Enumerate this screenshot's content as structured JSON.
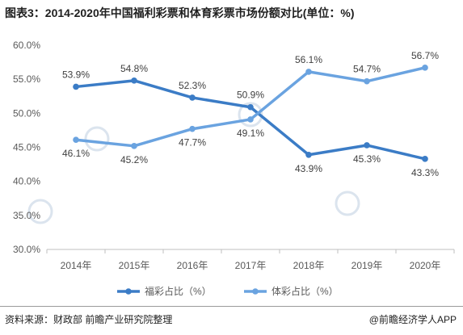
{
  "title": "图表3：2014-2020年中国福利彩票和体育彩票市场份额对比(单位：%)",
  "footer": {
    "source": "资料来源：财政部 前瞻产业研究院整理",
    "brand": "@前瞻经济学人APP"
  },
  "chart_data": {
    "type": "line",
    "title": "图表3：2014-2020年中国福利彩票和体育彩票市场份额对比(单位：%)",
    "categories": [
      "2014年",
      "2015年",
      "2016年",
      "2017年",
      "2018年",
      "2019年",
      "2020年"
    ],
    "ylim": [
      30,
      60
    ],
    "yticks": [
      "60.0%",
      "55.0%",
      "50.0%",
      "45.0%",
      "40.0%",
      "35.0%",
      "30.0%"
    ],
    "grid": false,
    "legend_position": "bottom",
    "series": [
      {
        "name": "福彩占比（%）",
        "color": "#3b7cc6",
        "values": [
          53.9,
          54.8,
          52.3,
          50.9,
          43.9,
          45.3,
          43.3
        ],
        "labels": [
          "53.9%",
          "54.8%",
          "52.3%",
          "50.9%",
          "43.9%",
          "45.3%",
          "43.3%"
        ]
      },
      {
        "name": "体彩占比（%）",
        "color": "#6aa3e0",
        "values": [
          46.1,
          45.2,
          47.7,
          49.1,
          56.1,
          54.7,
          56.7
        ],
        "labels": [
          "46.1%",
          "45.2%",
          "47.7%",
          "49.1%",
          "56.1%",
          "54.7%",
          "56.7%"
        ]
      }
    ]
  }
}
